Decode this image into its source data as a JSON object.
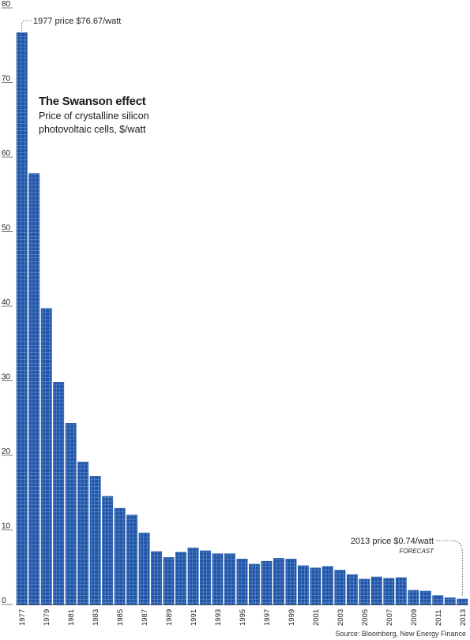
{
  "chart_data": {
    "type": "bar",
    "title": "The Swanson effect",
    "subtitle": "Price of crystalline silicon photovoltaic cells, $/watt",
    "x": [
      1977,
      1978,
      1979,
      1980,
      1981,
      1982,
      1983,
      1984,
      1985,
      1986,
      1987,
      1988,
      1989,
      1990,
      1991,
      1992,
      1993,
      1994,
      1995,
      1996,
      1997,
      1998,
      1999,
      2000,
      2001,
      2002,
      2003,
      2004,
      2005,
      2006,
      2007,
      2008,
      2009,
      2010,
      2011,
      2012,
      2013
    ],
    "values": [
      76.67,
      57.8,
      39.7,
      29.8,
      24.3,
      19.1,
      17.2,
      14.5,
      12.9,
      12.0,
      9.6,
      7.1,
      6.3,
      7.0,
      7.6,
      7.2,
      6.8,
      6.8,
      6.1,
      5.4,
      5.8,
      6.2,
      6.1,
      5.2,
      4.9,
      5.1,
      4.6,
      4.0,
      3.4,
      3.7,
      3.5,
      3.6,
      1.9,
      1.8,
      1.2,
      0.9,
      0.74
    ],
    "xtick_labels": [
      "1977",
      "1979",
      "1981",
      "1983",
      "1985",
      "1987",
      "1989",
      "1991",
      "1993",
      "1995",
      "1997",
      "1999",
      "2001",
      "2003",
      "2005",
      "2007",
      "2009",
      "2011",
      "2013"
    ],
    "ytick_labels": [
      "0",
      "10",
      "20",
      "30",
      "40",
      "50",
      "60",
      "70",
      "80"
    ],
    "ylim": [
      0,
      80
    ],
    "bar_color": "#1f55a8",
    "cell_line_color": "#9ab8e2",
    "annotations": {
      "start_label": "1977 price $76.67/watt",
      "end_label": "2013 price $0.74/watt",
      "forecast_label": "FORECAST"
    },
    "source": "Source: Bloomberg, New Energy Finance"
  }
}
